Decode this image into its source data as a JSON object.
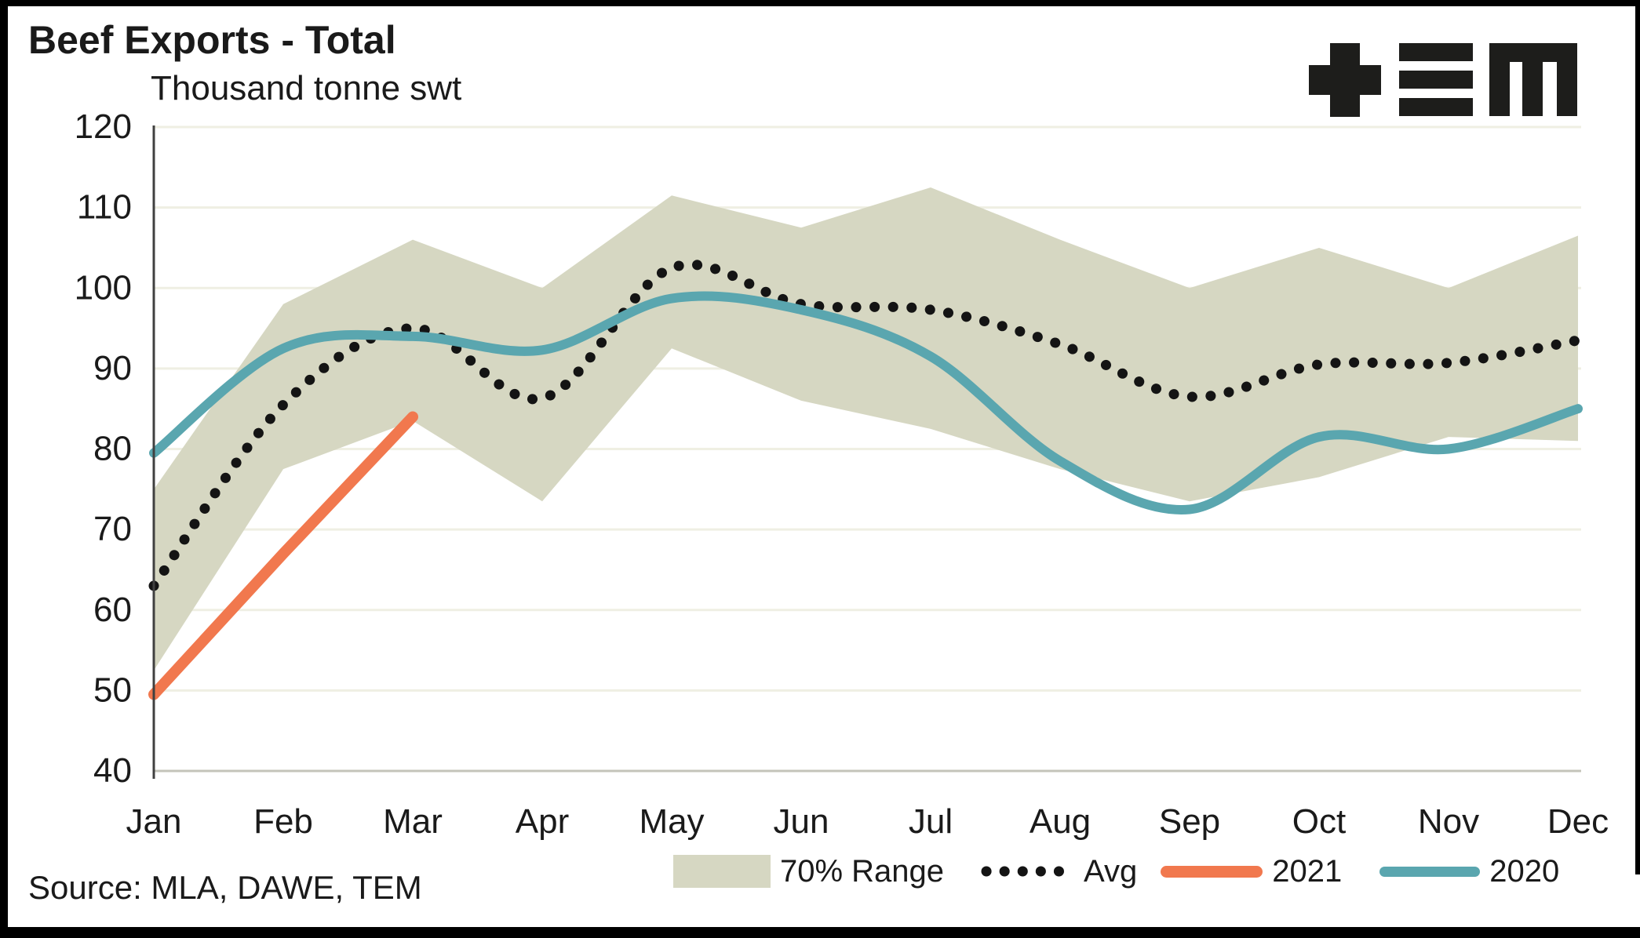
{
  "header": {
    "title": "Beef Exports - Total",
    "subtitle": "Thousand tonne swt",
    "source": "Source: MLA, DAWE, TEM",
    "logo": "TEM"
  },
  "legend": {
    "items": [
      {
        "label": "70% Range",
        "swatch": "band"
      },
      {
        "label": "Avg",
        "swatch": "dotted-line"
      },
      {
        "label": "2021",
        "swatch": "orange-line"
      },
      {
        "label": "2020",
        "swatch": "teal-line"
      }
    ]
  },
  "colors": {
    "band": "#D6D7C2",
    "grid": "#EFEFE3",
    "grid_bottom": "#C4C4BA",
    "avg": "#141414",
    "y2021": "#F1784E",
    "y2020": "#5AA6AF",
    "text": "#1A1A1A",
    "axis_line": "#404040",
    "logo": "#1D1D1B"
  },
  "chart_data": {
    "type": "line",
    "title": "Beef Exports - Total",
    "ylabel": "Thousand tonne swt",
    "categories": [
      "Jan",
      "Feb",
      "Mar",
      "Apr",
      "May",
      "Jun",
      "Jul",
      "Aug",
      "Sep",
      "Oct",
      "Nov",
      "Dec"
    ],
    "ylim": [
      40,
      120
    ],
    "yticks": [
      40,
      50,
      60,
      70,
      80,
      90,
      100,
      110,
      120
    ],
    "grid": true,
    "legend_position": "bottom",
    "series": [
      {
        "name": "70% Range",
        "type": "band",
        "upper": [
          75,
          98,
          106,
          100,
          111.5,
          107.5,
          112.5,
          106,
          100,
          105,
          100,
          106.5
        ],
        "lower": [
          52.5,
          77.5,
          83.5,
          73.5,
          92.5,
          86,
          82.5,
          77.5,
          73.5,
          76.5,
          81.5,
          81
        ]
      },
      {
        "name": "Avg",
        "type": "dotted-smooth-line",
        "values": [
          63,
          85.5,
          95,
          86.3,
          102.5,
          98,
          97.3,
          93,
          86.5,
          90.5,
          90.7,
          93.5
        ]
      },
      {
        "name": "2021",
        "type": "line",
        "values": [
          49.5,
          67,
          84,
          null,
          null,
          null,
          null,
          null,
          null,
          null,
          null,
          null
        ]
      },
      {
        "name": "2020",
        "type": "smooth-line",
        "values": [
          79.5,
          92.5,
          94,
          92.3,
          98.7,
          97.3,
          91.5,
          78.5,
          72.5,
          81.5,
          80,
          85
        ]
      }
    ]
  }
}
